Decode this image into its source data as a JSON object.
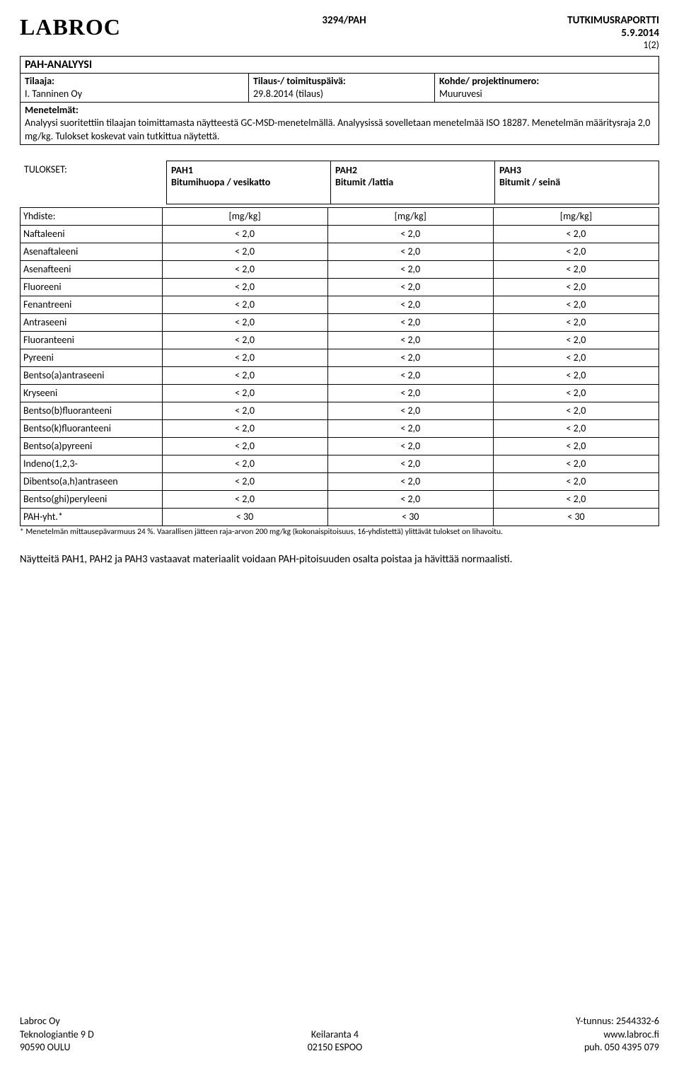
{
  "header": {
    "logo": "LABROC",
    "doc_id": "3294/PAH",
    "report_label": "TUTKIMUSRAPORTTI",
    "date": "5.9.2014",
    "page": "1(2)"
  },
  "section_title": "PAH-ANALYYSI",
  "info": {
    "tilaaja_label": "Tilaaja:",
    "tilaaja_value": "I. Tanninen Oy",
    "tilaus_label": "Tilaus-/ toimituspäivä:",
    "tilaus_value": "29.8.2014 (tilaus)",
    "kohde_label": "Kohde/ projektinumero:",
    "kohde_value": "Muuruvesi"
  },
  "methods": {
    "label": "Menetelmät:",
    "text": "Analyysi suoritettiin tilaajan toimittamasta näytteestä GC-MSD-menetelmällä. Analyysissä sovelletaan menetelmää ISO 18287. Menetelmän määritysraja 2,0 mg/kg. Tulokset koskevat vain tutkittua näytettä."
  },
  "results": {
    "label": "TULOKSET:",
    "columns": [
      {
        "code": "PAH1",
        "desc": "Bitumihuopa / vesikatto"
      },
      {
        "code": "PAH2",
        "desc": "Bitumit /lattia"
      },
      {
        "code": "PAH3",
        "desc": "Bitumit / seinä"
      }
    ],
    "compound_label": "Yhdiste:",
    "unit": "[mg/kg]",
    "rows": [
      {
        "name": "Naftaleeni",
        "v": [
          "< 2,0",
          "< 2,0",
          "< 2,0"
        ]
      },
      {
        "name": "Asenaftaleeni",
        "v": [
          "< 2,0",
          "< 2,0",
          "< 2,0"
        ]
      },
      {
        "name": "Asenafteeni",
        "v": [
          "< 2,0",
          "< 2,0",
          "< 2,0"
        ]
      },
      {
        "name": "Fluoreeni",
        "v": [
          "< 2,0",
          "< 2,0",
          "< 2,0"
        ]
      },
      {
        "name": "Fenantreeni",
        "v": [
          "< 2,0",
          "< 2,0",
          "< 2,0"
        ]
      },
      {
        "name": "Antraseeni",
        "v": [
          "< 2,0",
          "< 2,0",
          "< 2,0"
        ]
      },
      {
        "name": "Fluoranteeni",
        "v": [
          "< 2,0",
          "< 2,0",
          "< 2,0"
        ]
      },
      {
        "name": "Pyreeni",
        "v": [
          "< 2,0",
          "< 2,0",
          "< 2,0"
        ]
      },
      {
        "name": "Bentso(a)antraseeni",
        "v": [
          "< 2,0",
          "< 2,0",
          "< 2,0"
        ]
      },
      {
        "name": "Kryseeni",
        "v": [
          "< 2,0",
          "< 2,0",
          "< 2,0"
        ]
      },
      {
        "name": "Bentso(b)fluoranteeni",
        "v": [
          "< 2,0",
          "< 2,0",
          "< 2,0"
        ]
      },
      {
        "name": "Bentso(k)fluoranteeni",
        "v": [
          "< 2,0",
          "< 2,0",
          "< 2,0"
        ]
      },
      {
        "name": "Bentso(a)pyreeni",
        "v": [
          "< 2,0",
          "< 2,0",
          "< 2,0"
        ]
      },
      {
        "name": "Indeno(1,2,3-",
        "v": [
          "< 2,0",
          "< 2,0",
          "< 2,0"
        ]
      },
      {
        "name": "Dibentso(a,h)antraseen",
        "v": [
          "< 2,0",
          "< 2,0",
          "< 2,0"
        ]
      },
      {
        "name": "Bentso(ghi)peryleeni",
        "v": [
          "< 2,0",
          "< 2,0",
          "< 2,0"
        ]
      },
      {
        "name": "PAH-yht.*",
        "v": [
          "< 30",
          "< 30",
          "< 30"
        ]
      }
    ]
  },
  "footnote": "* Menetelmän mittausepävarmuus 24 %. Vaarallisen jätteen raja-arvon 200 mg/kg (kokonaispitoisuus, 16-yhdistettä) ylittävät tulokset on lihavoitu.",
  "summary": "Näytteitä PAH1, PAH2 ja PAH3 vastaavat materiaalit voidaan PAH-pitoisuuden osalta poistaa ja hävittää normaalisti.",
  "footer": {
    "left1": "Labroc Oy",
    "left2": "Teknologiantie 9 D",
    "left3": "90590 OULU",
    "center1": "Keilaranta 4",
    "center2": "02150 ESPOO",
    "right1": "Y-tunnus: 2544332-6",
    "right2": "www.labroc.fi",
    "right3": "puh. 050 4395 079"
  }
}
